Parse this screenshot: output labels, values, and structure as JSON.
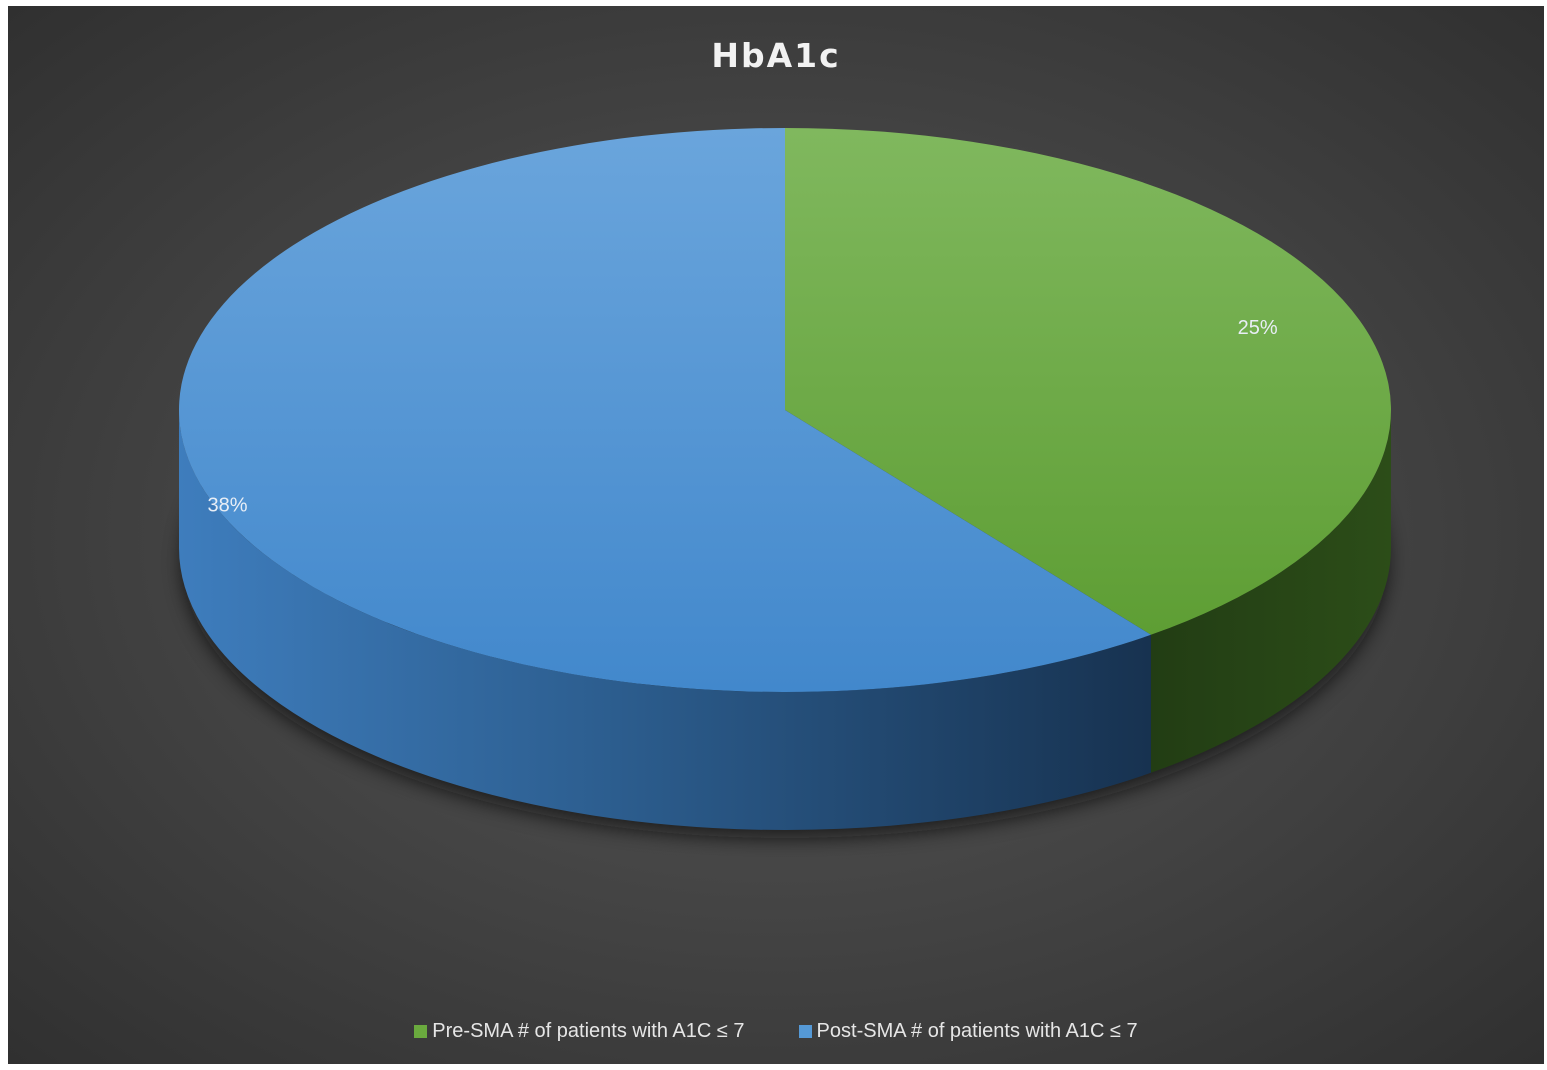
{
  "chart_data": {
    "type": "pie",
    "title": "HbA1c",
    "slices": [
      {
        "label": "Pre-SMA # of patients with A1C ≤ 7",
        "value": 25,
        "display": "25%",
        "color": "#6aaa3e"
      },
      {
        "label": "Post-SMA # of patients with A1C ≤ 7",
        "value": 38,
        "display": "38%",
        "color": "#5599d6"
      }
    ],
    "legend": {
      "position": "bottom"
    },
    "background_color": "#404040"
  }
}
